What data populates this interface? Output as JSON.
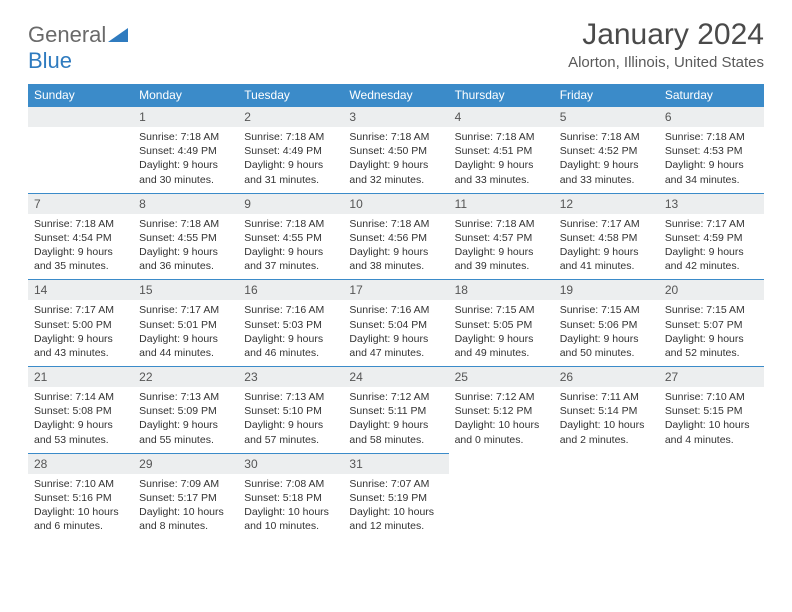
{
  "brand": {
    "part1": "General",
    "part2": "Blue"
  },
  "title": "January 2024",
  "location": "Alorton, Illinois, United States",
  "colors": {
    "header_bg": "#3b8bc9",
    "header_text": "#ffffff",
    "daynum_bg": "#eceeef",
    "border": "#3b8bc9",
    "brand_gray": "#6a6a6a",
    "brand_blue": "#2f7bbf"
  },
  "weekdays": [
    "Sunday",
    "Monday",
    "Tuesday",
    "Wednesday",
    "Thursday",
    "Friday",
    "Saturday"
  ],
  "startOffset": 1,
  "days": [
    {
      "n": 1,
      "sunrise": "7:18 AM",
      "sunset": "4:49 PM",
      "daylight": "9 hours and 30 minutes."
    },
    {
      "n": 2,
      "sunrise": "7:18 AM",
      "sunset": "4:49 PM",
      "daylight": "9 hours and 31 minutes."
    },
    {
      "n": 3,
      "sunrise": "7:18 AM",
      "sunset": "4:50 PM",
      "daylight": "9 hours and 32 minutes."
    },
    {
      "n": 4,
      "sunrise": "7:18 AM",
      "sunset": "4:51 PM",
      "daylight": "9 hours and 33 minutes."
    },
    {
      "n": 5,
      "sunrise": "7:18 AM",
      "sunset": "4:52 PM",
      "daylight": "9 hours and 33 minutes."
    },
    {
      "n": 6,
      "sunrise": "7:18 AM",
      "sunset": "4:53 PM",
      "daylight": "9 hours and 34 minutes."
    },
    {
      "n": 7,
      "sunrise": "7:18 AM",
      "sunset": "4:54 PM",
      "daylight": "9 hours and 35 minutes."
    },
    {
      "n": 8,
      "sunrise": "7:18 AM",
      "sunset": "4:55 PM",
      "daylight": "9 hours and 36 minutes."
    },
    {
      "n": 9,
      "sunrise": "7:18 AM",
      "sunset": "4:55 PM",
      "daylight": "9 hours and 37 minutes."
    },
    {
      "n": 10,
      "sunrise": "7:18 AM",
      "sunset": "4:56 PM",
      "daylight": "9 hours and 38 minutes."
    },
    {
      "n": 11,
      "sunrise": "7:18 AM",
      "sunset": "4:57 PM",
      "daylight": "9 hours and 39 minutes."
    },
    {
      "n": 12,
      "sunrise": "7:17 AM",
      "sunset": "4:58 PM",
      "daylight": "9 hours and 41 minutes."
    },
    {
      "n": 13,
      "sunrise": "7:17 AM",
      "sunset": "4:59 PM",
      "daylight": "9 hours and 42 minutes."
    },
    {
      "n": 14,
      "sunrise": "7:17 AM",
      "sunset": "5:00 PM",
      "daylight": "9 hours and 43 minutes."
    },
    {
      "n": 15,
      "sunrise": "7:17 AM",
      "sunset": "5:01 PM",
      "daylight": "9 hours and 44 minutes."
    },
    {
      "n": 16,
      "sunrise": "7:16 AM",
      "sunset": "5:03 PM",
      "daylight": "9 hours and 46 minutes."
    },
    {
      "n": 17,
      "sunrise": "7:16 AM",
      "sunset": "5:04 PM",
      "daylight": "9 hours and 47 minutes."
    },
    {
      "n": 18,
      "sunrise": "7:15 AM",
      "sunset": "5:05 PM",
      "daylight": "9 hours and 49 minutes."
    },
    {
      "n": 19,
      "sunrise": "7:15 AM",
      "sunset": "5:06 PM",
      "daylight": "9 hours and 50 minutes."
    },
    {
      "n": 20,
      "sunrise": "7:15 AM",
      "sunset": "5:07 PM",
      "daylight": "9 hours and 52 minutes."
    },
    {
      "n": 21,
      "sunrise": "7:14 AM",
      "sunset": "5:08 PM",
      "daylight": "9 hours and 53 minutes."
    },
    {
      "n": 22,
      "sunrise": "7:13 AM",
      "sunset": "5:09 PM",
      "daylight": "9 hours and 55 minutes."
    },
    {
      "n": 23,
      "sunrise": "7:13 AM",
      "sunset": "5:10 PM",
      "daylight": "9 hours and 57 minutes."
    },
    {
      "n": 24,
      "sunrise": "7:12 AM",
      "sunset": "5:11 PM",
      "daylight": "9 hours and 58 minutes."
    },
    {
      "n": 25,
      "sunrise": "7:12 AM",
      "sunset": "5:12 PM",
      "daylight": "10 hours and 0 minutes."
    },
    {
      "n": 26,
      "sunrise": "7:11 AM",
      "sunset": "5:14 PM",
      "daylight": "10 hours and 2 minutes."
    },
    {
      "n": 27,
      "sunrise": "7:10 AM",
      "sunset": "5:15 PM",
      "daylight": "10 hours and 4 minutes."
    },
    {
      "n": 28,
      "sunrise": "7:10 AM",
      "sunset": "5:16 PM",
      "daylight": "10 hours and 6 minutes."
    },
    {
      "n": 29,
      "sunrise": "7:09 AM",
      "sunset": "5:17 PM",
      "daylight": "10 hours and 8 minutes."
    },
    {
      "n": 30,
      "sunrise": "7:08 AM",
      "sunset": "5:18 PM",
      "daylight": "10 hours and 10 minutes."
    },
    {
      "n": 31,
      "sunrise": "7:07 AM",
      "sunset": "5:19 PM",
      "daylight": "10 hours and 12 minutes."
    }
  ]
}
